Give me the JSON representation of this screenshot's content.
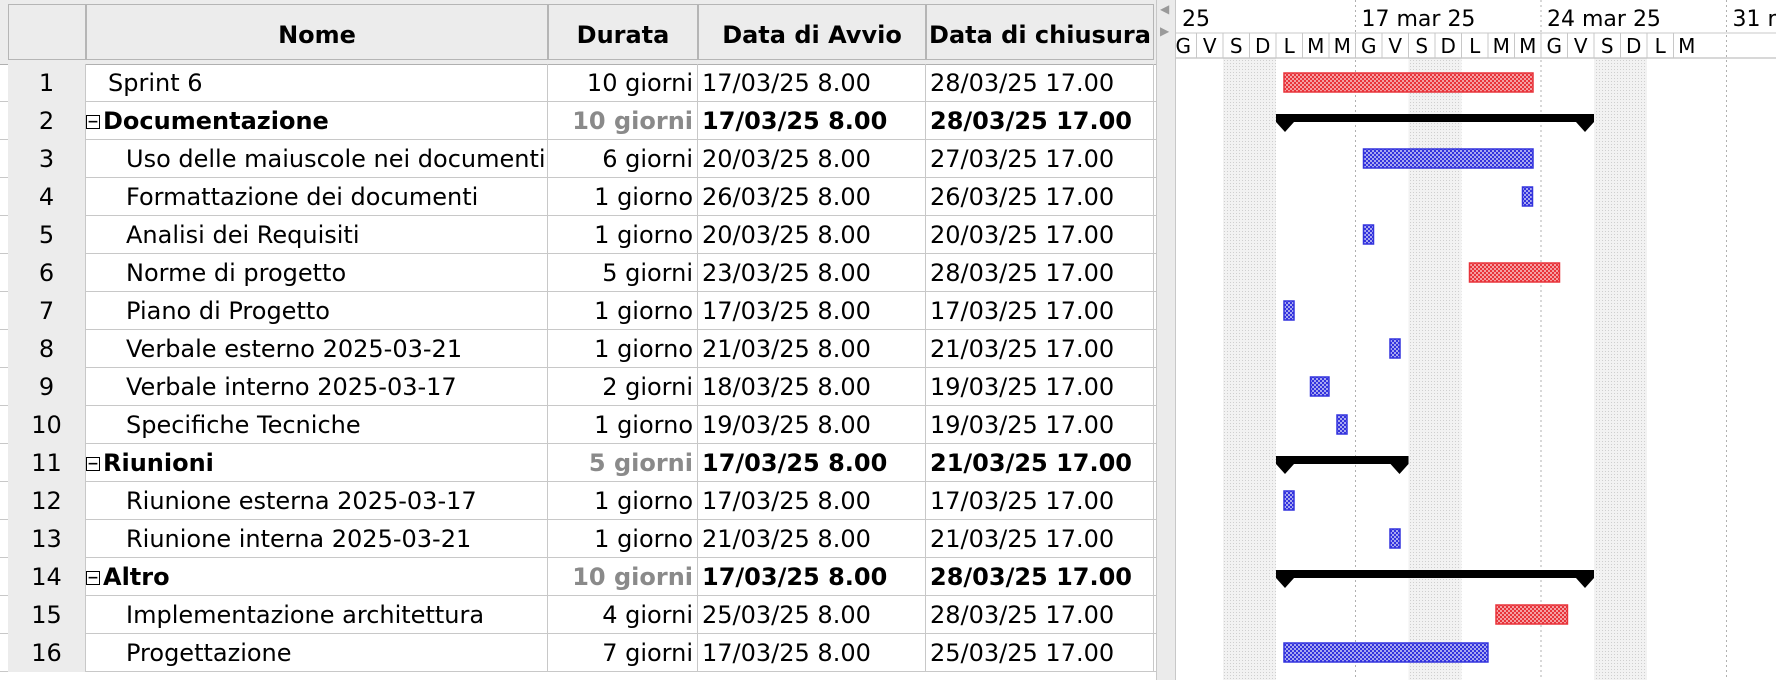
{
  "table": {
    "columns": {
      "number": "",
      "name": "Nome",
      "duration": "Durata",
      "start": "Data di Avvio",
      "end": "Data di chiusura"
    },
    "rows": [
      {
        "id": "1",
        "name": "Sprint 6",
        "duration": "10 giorni",
        "start": "17/03/25 8.00",
        "end": "28/03/25 17.00",
        "level": 0,
        "group": false
      },
      {
        "id": "2",
        "name": "Documentazione",
        "duration": "10 giorni",
        "start": "17/03/25 8.00",
        "end": "28/03/25 17.00",
        "level": 0,
        "group": true
      },
      {
        "id": "3",
        "name": "Uso delle maiuscole nei documenti",
        "duration": "6 giorni",
        "start": "20/03/25 8.00",
        "end": "27/03/25 17.00",
        "level": 1,
        "group": false
      },
      {
        "id": "4",
        "name": "Formattazione dei documenti",
        "duration": "1 giorno",
        "start": "26/03/25 8.00",
        "end": "26/03/25 17.00",
        "level": 1,
        "group": false
      },
      {
        "id": "5",
        "name": "Analisi dei Requisiti",
        "duration": "1 giorno",
        "start": "20/03/25 8.00",
        "end": "20/03/25 17.00",
        "level": 1,
        "group": false
      },
      {
        "id": "6",
        "name": "Norme di progetto",
        "duration": "5 giorni",
        "start": "23/03/25 8.00",
        "end": "28/03/25 17.00",
        "level": 1,
        "group": false
      },
      {
        "id": "7",
        "name": "Piano di Progetto",
        "duration": "1 giorno",
        "start": "17/03/25 8.00",
        "end": "17/03/25 17.00",
        "level": 1,
        "group": false
      },
      {
        "id": "8",
        "name": "Verbale esterno 2025-03-21",
        "duration": "1 giorno",
        "start": "21/03/25 8.00",
        "end": "21/03/25 17.00",
        "level": 1,
        "group": false
      },
      {
        "id": "9",
        "name": "Verbale interno 2025-03-17",
        "duration": "2 giorni",
        "start": "18/03/25 8.00",
        "end": "19/03/25 17.00",
        "level": 1,
        "group": false
      },
      {
        "id": "10",
        "name": "Specifiche Tecniche",
        "duration": "1 giorno",
        "start": "19/03/25 8.00",
        "end": "19/03/25 17.00",
        "level": 1,
        "group": false
      },
      {
        "id": "11",
        "name": "Riunioni",
        "duration": "5 giorni",
        "start": "17/03/25 8.00",
        "end": "21/03/25 17.00",
        "level": 0,
        "group": true
      },
      {
        "id": "12",
        "name": "Riunione esterna 2025-03-17",
        "duration": "1 giorno",
        "start": "17/03/25 8.00",
        "end": "17/03/25 17.00",
        "level": 1,
        "group": false
      },
      {
        "id": "13",
        "name": "Riunione interna 2025-03-21",
        "duration": "1 giorno",
        "start": "21/03/25 8.00",
        "end": "21/03/25 17.00",
        "level": 1,
        "group": false
      },
      {
        "id": "14",
        "name": "Altro",
        "duration": "10 giorni",
        "start": "17/03/25 8.00",
        "end": "28/03/25 17.00",
        "level": 0,
        "group": true
      },
      {
        "id": "15",
        "name": "Implementazione architettura",
        "duration": "4 giorni",
        "start": "25/03/25 8.00",
        "end": "28/03/25 17.00",
        "level": 1,
        "group": false
      },
      {
        "id": "16",
        "name": "Progettazione",
        "duration": "7 giorni",
        "start": "17/03/25 8.00",
        "end": "25/03/25 17.00",
        "level": 1,
        "group": false
      }
    ]
  },
  "gantt": {
    "week_labels": [
      "25",
      "17 mar 25",
      "24 mar 25",
      "31 m"
    ],
    "day_letters": [
      "G",
      "V",
      "S",
      "D",
      "L",
      "M",
      "M",
      "G",
      "V",
      "S",
      "D",
      "L",
      "M",
      "M",
      "G",
      "V",
      "S",
      "D",
      "L",
      "M"
    ],
    "colors": {
      "critical": "#e8333a",
      "normal": "#3333dd",
      "summary": "#000000",
      "weekend": "#e6e6e6"
    },
    "bars": [
      {
        "row": 1,
        "kind": "critical",
        "start_day": 0,
        "days": 10
      },
      {
        "row": 2,
        "kind": "summary",
        "start_day": 0,
        "days": 12
      },
      {
        "row": 3,
        "kind": "normal",
        "start_day": 3,
        "days": 7
      },
      {
        "row": 4,
        "kind": "normal",
        "start_day": 9,
        "days": 0.3
      },
      {
        "row": 5,
        "kind": "normal",
        "start_day": 3,
        "days": 0.3
      },
      {
        "row": 6,
        "kind": "critical",
        "start_day": 7,
        "days": 4
      },
      {
        "row": 7,
        "kind": "normal",
        "start_day": 0,
        "days": 0.3
      },
      {
        "row": 8,
        "kind": "normal",
        "start_day": 4,
        "days": 0.3
      },
      {
        "row": 9,
        "kind": "normal",
        "start_day": 1,
        "days": 1.3
      },
      {
        "row": 10,
        "kind": "normal",
        "start_day": 2,
        "days": 0.3
      },
      {
        "row": 11,
        "kind": "summary",
        "start_day": 0,
        "days": 5
      },
      {
        "row": 12,
        "kind": "normal",
        "start_day": 0,
        "days": 0.3
      },
      {
        "row": 13,
        "kind": "normal",
        "start_day": 4,
        "days": 0.3
      },
      {
        "row": 14,
        "kind": "summary",
        "start_day": 0,
        "days": 12
      },
      {
        "row": 15,
        "kind": "critical",
        "start_day": 8,
        "days": 3.3
      },
      {
        "row": 16,
        "kind": "normal",
        "start_day": 0,
        "days": 8.3
      }
    ]
  }
}
